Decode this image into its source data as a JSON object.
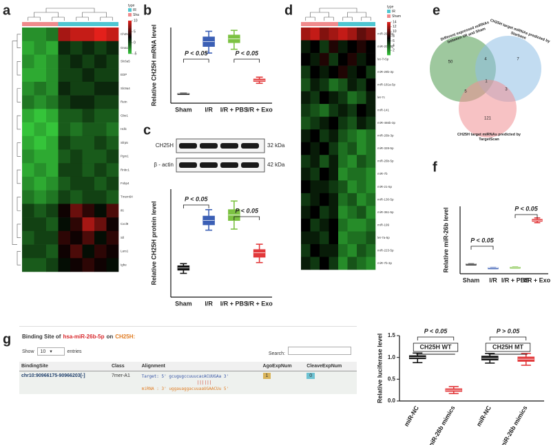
{
  "panels": [
    "a",
    "b",
    "c",
    "d",
    "e",
    "f",
    "g"
  ],
  "chart_data": [
    {
      "type": "heatmap",
      "rows": [
        "Ch25h",
        "Gna11",
        "Slc6a5",
        "EDP",
        "Slc9a4",
        "Retn",
        "Gbe1",
        "Hdlc",
        "Sfrp5",
        "Pgm1",
        "Rnbc1",
        "Fxbp4",
        "Tmem64",
        "Il6",
        "Cxcl9",
        "Sll",
        "Lars1",
        "Ighe"
      ],
      "matrix": [
        [
          -3,
          -3,
          -2,
          8,
          9,
          9,
          10,
          9
        ],
        [
          -4,
          -3,
          -4,
          1,
          0,
          1,
          0,
          1
        ],
        [
          -3,
          -4,
          -3,
          0,
          1,
          0,
          1,
          0
        ],
        [
          -4,
          -4,
          -3,
          0,
          0,
          1,
          0,
          0
        ],
        [
          -3,
          -2,
          -3,
          1,
          0,
          0,
          1,
          1
        ],
        [
          -2,
          -3,
          -2,
          0,
          1,
          1,
          0,
          0
        ],
        [
          -4,
          -5,
          -4,
          -1,
          -1,
          0,
          -1,
          -1
        ],
        [
          -5,
          -4,
          -5,
          -1,
          -2,
          -1,
          -1,
          -2
        ],
        [
          -4,
          -5,
          -4,
          0,
          -1,
          -1,
          0,
          -1
        ],
        [
          -3,
          -4,
          -4,
          -1,
          0,
          -1,
          -1,
          0
        ],
        [
          -4,
          -3,
          -4,
          0,
          0,
          -1,
          0,
          -1
        ],
        [
          -3,
          -4,
          -3,
          -1,
          0,
          0,
          -1,
          0
        ],
        [
          -2,
          -3,
          -2,
          0,
          -1,
          0,
          0,
          -1
        ],
        [
          0,
          -1,
          0,
          3,
          6,
          4,
          2,
          5
        ],
        [
          0,
          0,
          -1,
          2,
          4,
          8,
          6,
          3
        ],
        [
          -1,
          0,
          0,
          4,
          3,
          5,
          2,
          4
        ],
        [
          0,
          0,
          -1,
          3,
          5,
          2,
          4,
          3
        ],
        [
          -1,
          -1,
          0,
          2,
          3,
          4,
          3,
          2
        ]
      ],
      "zlim": [
        -5,
        10
      ],
      "zticks": [
        -5,
        0,
        5,
        10
      ],
      "colors": {
        "low": "#35c43a",
        "mid": "#000000",
        "high": "#e3201b"
      },
      "legend_title": "type",
      "legend": [
        {
          "name": "IR",
          "color": "#4ec6d1"
        },
        {
          "name": "Sha",
          "color": "#f08a8c"
        }
      ],
      "column_colors": [
        "#f08a8c",
        "#f08a8c",
        "#f08a8c",
        "#4ec6d1",
        "#4ec6d1",
        "#4ec6d1",
        "#4ec6d1",
        "#4ec6d1"
      ]
    },
    {
      "type": "box",
      "ylabel": "Relative CH25H mRNA level",
      "categories": [
        "Sham",
        "I/R",
        "I/R + PBS",
        "I/R + Exo"
      ],
      "colors": [
        "#111111",
        "#3b5fb5",
        "#7cc242",
        "#e2393b"
      ],
      "ylim": [
        0,
        8
      ],
      "boxes": [
        {
          "min": 0.95,
          "q1": 0.98,
          "median": 1.0,
          "q3": 1.02,
          "max": 1.05
        },
        {
          "min": 5.3,
          "q1": 6.0,
          "median": 6.5,
          "q3": 7.0,
          "max": 7.6
        },
        {
          "min": 5.7,
          "q1": 6.4,
          "median": 6.8,
          "q3": 7.2,
          "max": 7.7
        },
        {
          "min": 2.1,
          "q1": 2.3,
          "median": 2.4,
          "q3": 2.55,
          "max": 2.75
        }
      ],
      "annotations": [
        {
          "text": "P < 0.05"
        },
        {
          "text": "P < 0.05"
        }
      ]
    },
    {
      "type": "box",
      "ylabel": "Relative CH25H protein level",
      "categories": [
        "Sham",
        "I/R",
        "I/R + PBS",
        "I/R + Exo"
      ],
      "colors": [
        "#111111",
        "#3b5fb5",
        "#7cc242",
        "#e2393b"
      ],
      "ylim": [
        0,
        1
      ],
      "boxes": [
        {
          "min": 0.22,
          "q1": 0.25,
          "median": 0.27,
          "q3": 0.29,
          "max": 0.31
        },
        {
          "min": 0.62,
          "q1": 0.67,
          "median": 0.71,
          "q3": 0.75,
          "max": 0.81
        },
        {
          "min": 0.63,
          "q1": 0.71,
          "median": 0.76,
          "q3": 0.81,
          "max": 0.89
        },
        {
          "min": 0.32,
          "q1": 0.37,
          "median": 0.41,
          "q3": 0.44,
          "max": 0.49
        }
      ],
      "annotations": [
        {
          "text": "P < 0.05"
        },
        {
          "text": "P < 0.05"
        }
      ]
    },
    {
      "type": "heatmap",
      "rows": [
        "miR-29a-5p",
        "miR-206-5p",
        "let-7i-5p",
        "miR-29b-3p",
        "miR-181a-5p",
        "let-7c",
        "miR-141",
        "miR-466b-3p",
        "miR-26b-3p",
        "miR-328-5p",
        "miR-26b-5p",
        "miR-7b",
        "miR-21-5p",
        "miR-130-5p",
        "miR-361-5p",
        "miR-199",
        "let-7a-5p",
        "miR-223-5p",
        "miR-7b-3p"
      ],
      "matrix": [
        [
          12,
          13,
          11,
          12,
          13,
          12,
          10,
          11
        ],
        [
          6,
          7,
          5,
          8,
          6,
          7,
          8,
          7
        ],
        [
          7,
          6,
          8,
          5,
          7,
          8,
          6,
          7
        ],
        [
          5,
          7,
          6,
          7,
          8,
          6,
          7,
          5
        ],
        [
          4,
          6,
          5,
          3,
          4,
          6,
          5,
          7
        ],
        [
          6,
          5,
          7,
          6,
          5,
          3,
          4,
          6
        ],
        [
          5,
          4,
          3,
          5,
          6,
          5,
          7,
          6
        ],
        [
          4,
          5,
          6,
          7,
          5,
          4,
          6,
          5
        ],
        [
          6,
          7,
          5,
          6,
          4,
          3,
          2,
          3
        ],
        [
          7,
          6,
          7,
          5,
          3,
          4,
          2,
          3
        ],
        [
          5,
          6,
          4,
          6,
          3,
          2,
          4,
          3
        ],
        [
          6,
          5,
          7,
          6,
          2,
          3,
          3,
          2
        ],
        [
          7,
          6,
          6,
          5,
          4,
          2,
          3,
          2
        ],
        [
          5,
          6,
          7,
          6,
          3,
          4,
          2,
          3
        ],
        [
          6,
          7,
          5,
          6,
          2,
          3,
          4,
          2
        ],
        [
          7,
          5,
          6,
          7,
          3,
          2,
          2,
          3
        ],
        [
          6,
          6,
          5,
          7,
          2,
          3,
          3,
          4
        ],
        [
          5,
          7,
          6,
          6,
          3,
          2,
          4,
          3
        ],
        [
          6,
          5,
          7,
          5,
          2,
          4,
          3,
          2
        ]
      ],
      "zlim": [
        0,
        14
      ],
      "zticks": [
        2,
        4,
        6,
        8,
        10,
        12,
        14
      ],
      "colors": {
        "low": "#35c43a",
        "mid": "#000000",
        "high": "#e3201b"
      },
      "legend_title": "type",
      "legend": [
        {
          "name": "IR",
          "color": "#4ec6d1"
        },
        {
          "name": "Sham",
          "color": "#f08a8c"
        }
      ],
      "column_colors": [
        "#f08a8c",
        "#f08a8c",
        "#f08a8c",
        "#f08a8c",
        "#4ec6d1",
        "#4ec6d1",
        "#4ec6d1",
        "#4ec6d1"
      ]
    },
    {
      "type": "venn",
      "sets": [
        {
          "name": "Different expressed miRNAs between I/R and Sham",
          "color": "#4f9a4f"
        },
        {
          "name": "CH25H target miRNAs predicted by Starbase",
          "color": "#8fc0e6"
        },
        {
          "name": "CH25H target miRNAs predicted by TargetScan",
          "color": "#f08f93"
        }
      ],
      "regions": {
        "a": 50,
        "ab": 4,
        "b": 7,
        "ac": 5,
        "abc": 1,
        "bc": 3,
        "c": 121
      }
    },
    {
      "type": "box",
      "ylabel": "Relative miR-26b level",
      "categories": [
        "Sham",
        "I/R",
        "I/R + PBS",
        "I/R + Exo"
      ],
      "colors": [
        "#111111",
        "#3b5fb5",
        "#7cc242",
        "#e2393b"
      ],
      "ylim": [
        0,
        7
      ],
      "boxes": [
        {
          "min": 0.97,
          "q1": 0.99,
          "median": 1.0,
          "q3": 1.01,
          "max": 1.03
        },
        {
          "min": 0.55,
          "q1": 0.58,
          "median": 0.6,
          "q3": 0.62,
          "max": 0.64
        },
        {
          "min": 0.6,
          "q1": 0.63,
          "median": 0.65,
          "q3": 0.68,
          "max": 0.7
        },
        {
          "min": 5.3,
          "q1": 5.45,
          "median": 5.55,
          "q3": 5.65,
          "max": 5.8
        }
      ],
      "annotations": [
        {
          "text": "P < 0.05"
        },
        {
          "text": "P < 0.05"
        }
      ]
    },
    {
      "type": "box",
      "ylabel": "Relative luciferase level",
      "categories": [
        "miR-NC",
        "miR-26b mimics",
        "miR-NC",
        "miR-26b mimics"
      ],
      "colors": [
        "#111111",
        "#e2393b",
        "#111111",
        "#e2393b"
      ],
      "ylim": [
        0,
        1.5
      ],
      "yticks": [
        {
          "value": 0,
          "label": "0.0"
        },
        0.5,
        {
          "value": 1,
          "label": "1.0"
        },
        1.5
      ],
      "boxes": [
        {
          "min": 0.88,
          "q1": 0.97,
          "median": 1.0,
          "q3": 1.04,
          "max": 1.1
        },
        {
          "min": 0.17,
          "q1": 0.22,
          "median": 0.25,
          "q3": 0.28,
          "max": 0.33
        },
        {
          "min": 0.87,
          "q1": 0.94,
          "median": 0.98,
          "q3": 1.03,
          "max": 1.09
        },
        {
          "min": 0.82,
          "q1": 0.91,
          "median": 0.96,
          "q3": 1.01,
          "max": 1.09
        }
      ],
      "annotations": [
        {
          "text": "P < 0.05"
        },
        {
          "text": "P > 0.05"
        }
      ],
      "group_labels": [
        "CH25H WT",
        "CH25H MT"
      ]
    }
  ],
  "blot": {
    "bands": [
      "CH25H",
      "β - actin"
    ],
    "sizes": [
      "32 kDa",
      "42 kDa"
    ]
  },
  "table": {
    "title_parts": [
      "Binding Site of",
      "hsa-miR-26b-5p",
      "on",
      "CH25H:"
    ],
    "show": "Show",
    "page_size": 10,
    "entries": "entries",
    "search": "Search:",
    "headers": [
      "BindingSite",
      "Class",
      "Alignment",
      "AgoExpNum",
      "CleaveExpNum"
    ],
    "rows": [
      [
        "chr10:90966175-90966203[-]",
        "7mer-A1",
        [
          "Target: 5' gcugugccuuucacACUUGAa 3'",
          "||||||",
          "miRNA : 3' uggauaggacuuaaUGAACUu 5'"
        ],
        1,
        0
      ]
    ]
  }
}
